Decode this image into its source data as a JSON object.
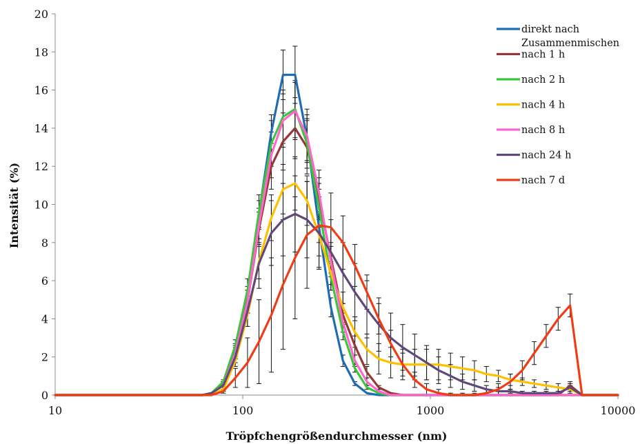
{
  "chart_data": {
    "type": "line",
    "title": "",
    "xlabel": "Tröpfchengrößendurchmesser (nm)",
    "ylabel": "Intensität (%)",
    "x_scale": "log",
    "xlim": [
      10,
      10000
    ],
    "ylim": [
      0,
      20
    ],
    "x_ticks": [
      10,
      100,
      1000,
      10000
    ],
    "x_tick_labels": [
      "10",
      "100",
      "1000",
      "10000"
    ],
    "y_ticks": [
      0,
      2,
      4,
      6,
      8,
      10,
      12,
      14,
      16,
      18,
      20
    ],
    "y_tick_labels": [
      "0",
      "2",
      "4",
      "6",
      "8",
      "10",
      "12",
      "14",
      "16",
      "18",
      "20"
    ],
    "grid": false,
    "legend_position": "top-right",
    "x": [
      10,
      11.6,
      13.5,
      15.7,
      18.2,
      21.2,
      24.7,
      28.7,
      33.4,
      38.8,
      45.1,
      52.4,
      60.9,
      68.1,
      78.8,
      91.3,
      106,
      122,
      142,
      164,
      190,
      220,
      255,
      295,
      342,
      396,
      459,
      531,
      615,
      712,
      825,
      955,
      1106,
      1281,
      1484,
      1718,
      1990,
      2305,
      2669,
      3091,
      3580,
      4145,
      4801,
      5560,
      6439,
      7456,
      8635,
      10000
    ],
    "series": [
      {
        "name": "direkt nach Zusammenmischen",
        "color": "#1F6CB4",
        "values": [
          0,
          0,
          0,
          0,
          0,
          0,
          0,
          0,
          0,
          0,
          0,
          0,
          0,
          0.1,
          0.6,
          2.4,
          5.2,
          9.5,
          13.8,
          16.8,
          16.8,
          13.5,
          8.8,
          4.6,
          1.8,
          0.6,
          0.1,
          0,
          0,
          0,
          0,
          0,
          0,
          0,
          0,
          0,
          0,
          0,
          0,
          0,
          0,
          0,
          0,
          0,
          0,
          0,
          0,
          0
        ],
        "error": [
          0,
          0,
          0,
          0,
          0,
          0,
          0,
          0,
          0,
          0,
          0,
          0,
          0,
          0,
          0.1,
          0.3,
          0.5,
          0.7,
          0.9,
          1.3,
          1.5,
          1.2,
          0.8,
          0.5,
          0.3,
          0.1,
          0,
          0,
          0,
          0,
          0,
          0,
          0,
          0,
          0,
          0,
          0,
          0,
          0,
          0,
          0,
          0,
          0,
          0,
          0,
          0,
          0,
          0
        ]
      },
      {
        "name": "nach 1 h",
        "color": "#953735",
        "values": [
          0,
          0,
          0,
          0,
          0,
          0,
          0,
          0,
          0,
          0,
          0,
          0,
          0,
          0.1,
          0.6,
          2.3,
          4.9,
          8.7,
          12.0,
          13.3,
          14.0,
          13.0,
          10.3,
          7.2,
          4.2,
          2.6,
          1.2,
          0.4,
          0.1,
          0,
          0,
          0,
          0,
          0,
          0,
          0,
          0,
          0,
          0,
          0,
          0,
          0,
          0,
          0.5,
          0,
          0,
          0,
          0
        ],
        "error": [
          0,
          0,
          0,
          0,
          0,
          0,
          0,
          0,
          0,
          0,
          0,
          0,
          0,
          0,
          0.1,
          0.3,
          0.6,
          0.9,
          1.2,
          1.5,
          1.6,
          1.4,
          1.1,
          0.8,
          0.6,
          0.5,
          0.3,
          0.1,
          0,
          0,
          0,
          0,
          0,
          0,
          0,
          0,
          0,
          0,
          0,
          0,
          0,
          0,
          0,
          0.2,
          0,
          0,
          0,
          0
        ]
      },
      {
        "name": "nach 2 h",
        "color": "#3CC43C",
        "values": [
          0,
          0,
          0,
          0,
          0,
          0,
          0,
          0,
          0,
          0,
          0,
          0,
          0,
          0.1,
          0.7,
          2.6,
          5.5,
          9.6,
          13.2,
          14.6,
          15.0,
          13.2,
          9.8,
          6.2,
          3.3,
          1.4,
          0.4,
          0.1,
          0,
          0,
          0,
          0,
          0,
          0,
          0,
          0,
          0,
          0,
          0,
          0,
          0,
          0,
          0,
          0,
          0,
          0,
          0,
          0
        ],
        "error": [
          0,
          0,
          0,
          0,
          0,
          0,
          0,
          0,
          0,
          0,
          0,
          0,
          0,
          0,
          0.1,
          0.3,
          0.6,
          0.9,
          1.2,
          1.4,
          1.5,
          1.3,
          1.0,
          0.7,
          0.4,
          0.2,
          0.1,
          0,
          0,
          0,
          0,
          0,
          0,
          0,
          0,
          0,
          0,
          0,
          0,
          0,
          0,
          0,
          0,
          0,
          0,
          0,
          0,
          0
        ]
      },
      {
        "name": "nach 4 h",
        "color": "#FFC000",
        "values": [
          0,
          0,
          0,
          0,
          0,
          0,
          0,
          0,
          0,
          0,
          0,
          0,
          0,
          0,
          0.3,
          1.8,
          4.2,
          7.0,
          9.3,
          10.8,
          11.1,
          10.2,
          8.4,
          6.4,
          4.6,
          3.3,
          2.4,
          1.9,
          1.7,
          1.6,
          1.6,
          1.6,
          1.6,
          1.5,
          1.4,
          1.3,
          1.1,
          1.0,
          0.8,
          0.7,
          0.6,
          0.5,
          0.4,
          0.3,
          0,
          0,
          0,
          0
        ],
        "error": [
          0,
          0,
          0,
          0,
          0,
          0,
          0,
          0,
          0,
          0,
          0,
          0,
          0,
          0,
          0.1,
          0.3,
          0.6,
          0.9,
          1.2,
          1.3,
          1.4,
          1.3,
          1.1,
          0.9,
          0.8,
          0.8,
          0.8,
          0.8,
          0.8,
          0.8,
          0.8,
          0.8,
          0.8,
          0.7,
          0.6,
          0.5,
          0.4,
          0.3,
          0.3,
          0.2,
          0.2,
          0.2,
          0.2,
          0.2,
          0,
          0,
          0,
          0
        ]
      },
      {
        "name": "nach 8 h",
        "color": "#FF66CC",
        "values": [
          0,
          0,
          0,
          0,
          0,
          0,
          0,
          0,
          0,
          0,
          0,
          0,
          0,
          0.1,
          0.5,
          2.2,
          4.9,
          8.9,
          12.6,
          14.4,
          14.9,
          13.6,
          10.6,
          7.0,
          3.8,
          1.8,
          0.7,
          0.2,
          0,
          0,
          0,
          0,
          0,
          0,
          0,
          0,
          0,
          0,
          0,
          0,
          0,
          0,
          0,
          0,
          0,
          0,
          0,
          0
        ],
        "error": [
          0,
          0,
          0,
          0,
          0,
          0,
          0,
          0,
          0,
          0,
          0,
          0,
          0,
          0,
          0.1,
          0.3,
          0.6,
          0.9,
          1.2,
          1.4,
          1.5,
          1.4,
          1.2,
          0.8,
          0.5,
          0.3,
          0.2,
          0.1,
          0,
          0,
          0,
          0,
          0,
          0,
          0,
          0,
          0,
          0,
          0,
          0,
          0,
          0,
          0,
          0,
          0,
          0,
          0,
          0
        ]
      },
      {
        "name": "nach 24 h",
        "color": "#60497A",
        "values": [
          0,
          0,
          0,
          0,
          0,
          0,
          0,
          0,
          0,
          0,
          0,
          0,
          0,
          0.1,
          0.5,
          2.0,
          4.4,
          6.9,
          8.5,
          9.2,
          9.5,
          9.2,
          8.5,
          7.5,
          6.4,
          5.4,
          4.5,
          3.7,
          3.0,
          2.5,
          2.1,
          1.7,
          1.3,
          1.0,
          0.7,
          0.5,
          0.3,
          0.2,
          0.2,
          0.1,
          0.1,
          0.1,
          0.1,
          0.4,
          0,
          0,
          0,
          0
        ],
        "error": [
          0,
          0,
          0,
          0,
          0,
          0,
          0,
          0,
          0,
          0,
          0,
          0,
          0,
          0,
          0.1,
          0.3,
          0.8,
          1.3,
          1.7,
          1.9,
          2.0,
          2.0,
          1.9,
          1.7,
          1.6,
          1.5,
          1.5,
          1.4,
          1.3,
          1.2,
          1.1,
          0.9,
          0.7,
          0.6,
          0.4,
          0.3,
          0.2,
          0.2,
          0.1,
          0.1,
          0.1,
          0.1,
          0.1,
          0.2,
          0,
          0,
          0,
          0
        ]
      },
      {
        "name": "nach 7 d",
        "color": "#F03C14",
        "values": [
          0,
          0,
          0,
          0,
          0,
          0,
          0,
          0,
          0,
          0,
          0,
          0,
          0,
          0,
          0.2,
          0.9,
          1.7,
          2.8,
          4.2,
          5.8,
          7.2,
          8.4,
          8.9,
          8.8,
          8.0,
          6.8,
          5.4,
          4.0,
          2.7,
          1.6,
          0.8,
          0.3,
          0.1,
          0,
          0,
          0,
          0.1,
          0.3,
          0.7,
          1.3,
          2.2,
          3.1,
          4.0,
          4.7,
          0,
          0,
          0,
          0
        ],
        "error": [
          0,
          0,
          0,
          0,
          0,
          0,
          0,
          0,
          0,
          0,
          0,
          0,
          0,
          0,
          0.1,
          0.5,
          1.3,
          2.2,
          3.0,
          3.4,
          3.2,
          2.8,
          2.2,
          1.8,
          1.4,
          1.1,
          0.9,
          0.8,
          0.7,
          0.6,
          0.4,
          0.3,
          0.2,
          0.1,
          0.1,
          0.1,
          0.2,
          0.3,
          0.4,
          0.5,
          0.6,
          0.6,
          0.6,
          0.6,
          0,
          0,
          0,
          0
        ]
      }
    ]
  }
}
